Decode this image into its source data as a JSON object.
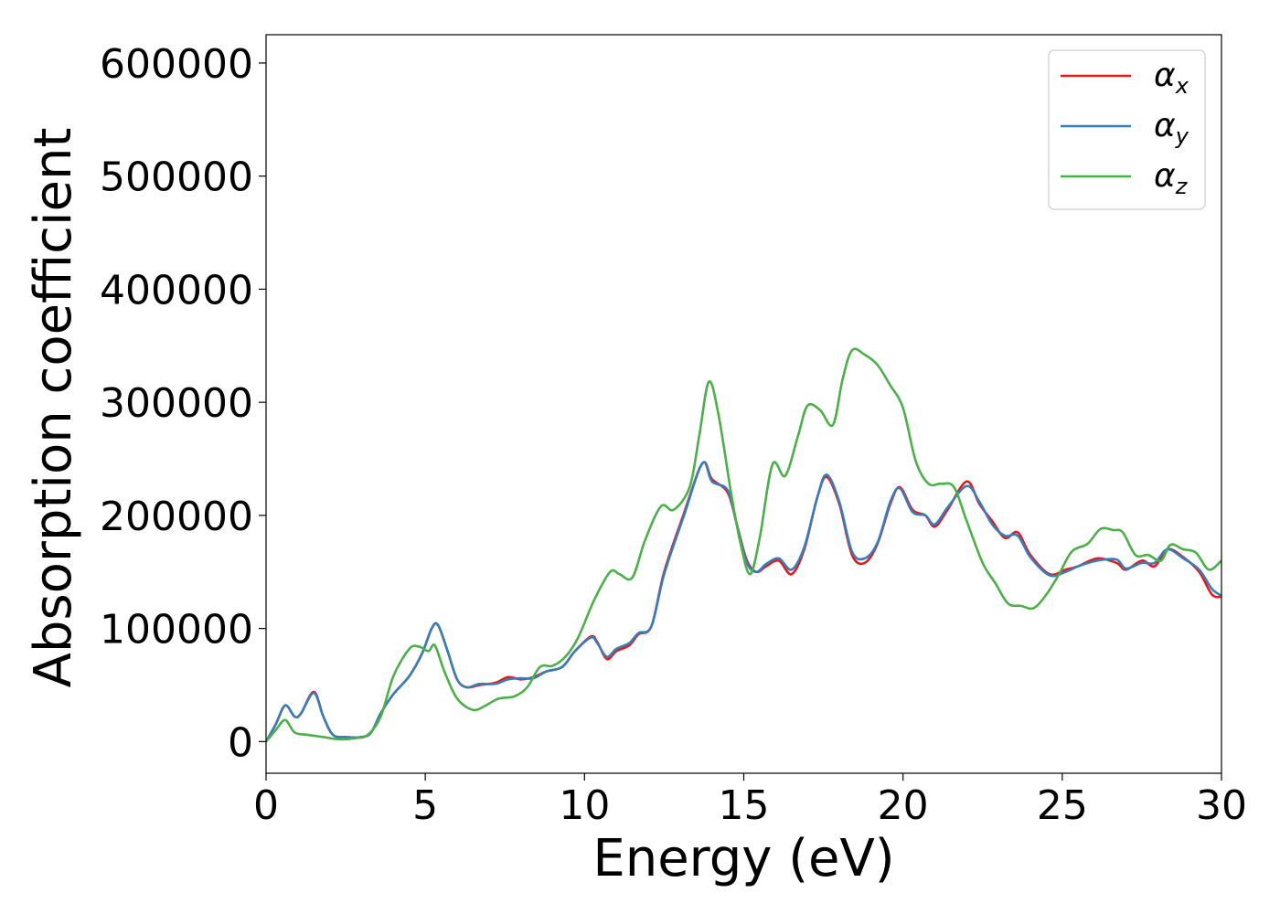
{
  "chart_data": {
    "type": "line",
    "title": "",
    "xlabel": "Energy (eV)",
    "ylabel": "Absorption coefficient",
    "xlim": [
      0,
      30
    ],
    "ylim": [
      -28000,
      625000
    ],
    "xticks": [
      0,
      5,
      10,
      15,
      20,
      25,
      30
    ],
    "xtick_labels": [
      "0",
      "5",
      "10",
      "15",
      "20",
      "25",
      "30"
    ],
    "yticks": [
      0,
      100000,
      200000,
      300000,
      400000,
      500000,
      600000
    ],
    "ytick_labels": [
      "0",
      "100000",
      "200000",
      "300000",
      "400000",
      "500000",
      "600000"
    ],
    "grid": false,
    "legend_position": "top-right",
    "series": [
      {
        "name": "α_x",
        "label_main": "α",
        "label_sub": "x",
        "color": "#e41a1c",
        "points": [
          [
            0,
            0
          ],
          [
            0.3,
            15000
          ],
          [
            0.6,
            32000
          ],
          [
            0.9,
            22000
          ],
          [
            1.1,
            25000
          ],
          [
            1.5,
            44000
          ],
          [
            1.8,
            22000
          ],
          [
            2.1,
            6000
          ],
          [
            2.5,
            4000
          ],
          [
            3.0,
            4000
          ],
          [
            3.3,
            8000
          ],
          [
            3.6,
            25000
          ],
          [
            4.0,
            42000
          ],
          [
            4.5,
            58000
          ],
          [
            4.9,
            78000
          ],
          [
            5.2,
            100000
          ],
          [
            5.4,
            103000
          ],
          [
            5.7,
            80000
          ],
          [
            6.0,
            55000
          ],
          [
            6.3,
            48000
          ],
          [
            6.7,
            50000
          ],
          [
            7.2,
            52000
          ],
          [
            7.6,
            57000
          ],
          [
            8.0,
            55000
          ],
          [
            8.4,
            57000
          ],
          [
            8.8,
            62000
          ],
          [
            9.3,
            66000
          ],
          [
            9.7,
            80000
          ],
          [
            10.2,
            93000
          ],
          [
            10.4,
            88000
          ],
          [
            10.7,
            73000
          ],
          [
            11.0,
            80000
          ],
          [
            11.4,
            85000
          ],
          [
            11.7,
            95000
          ],
          [
            12.1,
            102000
          ],
          [
            12.5,
            150000
          ],
          [
            13.1,
            200000
          ],
          [
            13.7,
            246000
          ],
          [
            14.0,
            232000
          ],
          [
            14.5,
            220000
          ],
          [
            14.8,
            190000
          ],
          [
            15.1,
            160000
          ],
          [
            15.4,
            150000
          ],
          [
            15.7,
            155000
          ],
          [
            16.1,
            160000
          ],
          [
            16.5,
            148000
          ],
          [
            16.9,
            170000
          ],
          [
            17.3,
            215000
          ],
          [
            17.6,
            234000
          ],
          [
            18.0,
            210000
          ],
          [
            18.4,
            165000
          ],
          [
            18.8,
            158000
          ],
          [
            19.2,
            175000
          ],
          [
            19.6,
            210000
          ],
          [
            19.9,
            225000
          ],
          [
            20.3,
            205000
          ],
          [
            20.7,
            200000
          ],
          [
            21.0,
            190000
          ],
          [
            21.4,
            205000
          ],
          [
            22.0,
            230000
          ],
          [
            22.4,
            210000
          ],
          [
            22.8,
            195000
          ],
          [
            23.2,
            180000
          ],
          [
            23.6,
            185000
          ],
          [
            24.0,
            165000
          ],
          [
            24.6,
            148000
          ],
          [
            25.1,
            152000
          ],
          [
            25.5,
            155000
          ],
          [
            26.1,
            162000
          ],
          [
            26.7,
            158000
          ],
          [
            27.0,
            152000
          ],
          [
            27.5,
            160000
          ],
          [
            27.9,
            155000
          ],
          [
            28.3,
            170000
          ],
          [
            28.8,
            163000
          ],
          [
            29.3,
            150000
          ],
          [
            29.7,
            130000
          ],
          [
            30.0,
            128000
          ]
        ]
      },
      {
        "name": "α_y",
        "label_main": "α",
        "label_sub": "y",
        "color": "#377eb8",
        "points": [
          [
            0,
            0
          ],
          [
            0.3,
            15000
          ],
          [
            0.6,
            32000
          ],
          [
            0.9,
            22000
          ],
          [
            1.1,
            25000
          ],
          [
            1.5,
            43000
          ],
          [
            1.8,
            22000
          ],
          [
            2.1,
            6000
          ],
          [
            2.5,
            4000
          ],
          [
            3.0,
            4000
          ],
          [
            3.3,
            8000
          ],
          [
            3.6,
            25000
          ],
          [
            4.0,
            42000
          ],
          [
            4.5,
            58000
          ],
          [
            4.9,
            78000
          ],
          [
            5.2,
            100000
          ],
          [
            5.4,
            103000
          ],
          [
            5.7,
            80000
          ],
          [
            6.0,
            55000
          ],
          [
            6.3,
            48000
          ],
          [
            6.7,
            51000
          ],
          [
            7.2,
            51000
          ],
          [
            7.6,
            55000
          ],
          [
            8.0,
            56000
          ],
          [
            8.4,
            56000
          ],
          [
            8.8,
            62000
          ],
          [
            9.3,
            66000
          ],
          [
            9.7,
            80000
          ],
          [
            10.2,
            92000
          ],
          [
            10.4,
            87000
          ],
          [
            10.7,
            75000
          ],
          [
            11.0,
            82000
          ],
          [
            11.4,
            87000
          ],
          [
            11.7,
            96000
          ],
          [
            12.1,
            102000
          ],
          [
            12.5,
            148000
          ],
          [
            13.1,
            198000
          ],
          [
            13.7,
            246000
          ],
          [
            14.0,
            230000
          ],
          [
            14.5,
            222000
          ],
          [
            14.8,
            190000
          ],
          [
            15.1,
            158000
          ],
          [
            15.4,
            150000
          ],
          [
            15.7,
            157000
          ],
          [
            16.1,
            162000
          ],
          [
            16.5,
            152000
          ],
          [
            16.9,
            172000
          ],
          [
            17.3,
            215000
          ],
          [
            17.6,
            236000
          ],
          [
            18.0,
            212000
          ],
          [
            18.4,
            168000
          ],
          [
            18.8,
            162000
          ],
          [
            19.2,
            176000
          ],
          [
            19.6,
            212000
          ],
          [
            19.9,
            224000
          ],
          [
            20.3,
            203000
          ],
          [
            20.7,
            200000
          ],
          [
            21.0,
            192000
          ],
          [
            21.4,
            207000
          ],
          [
            22.0,
            226000
          ],
          [
            22.4,
            212000
          ],
          [
            22.8,
            192000
          ],
          [
            23.2,
            182000
          ],
          [
            23.6,
            182000
          ],
          [
            24.0,
            163000
          ],
          [
            24.6,
            147000
          ],
          [
            25.1,
            150000
          ],
          [
            25.5,
            155000
          ],
          [
            26.1,
            160000
          ],
          [
            26.7,
            161000
          ],
          [
            27.0,
            153000
          ],
          [
            27.5,
            158000
          ],
          [
            27.9,
            158000
          ],
          [
            28.3,
            170000
          ],
          [
            28.8,
            162000
          ],
          [
            29.3,
            152000
          ],
          [
            29.7,
            135000
          ],
          [
            30.0,
            129000
          ]
        ]
      },
      {
        "name": "α_z",
        "label_main": "α",
        "label_sub": "z",
        "color": "#4daf4a",
        "points": [
          [
            0,
            0
          ],
          [
            0.3,
            10000
          ],
          [
            0.6,
            19000
          ],
          [
            0.9,
            8000
          ],
          [
            1.3,
            6000
          ],
          [
            1.8,
            4000
          ],
          [
            2.3,
            2000
          ],
          [
            2.8,
            3000
          ],
          [
            3.2,
            6000
          ],
          [
            3.6,
            22000
          ],
          [
            4.0,
            58000
          ],
          [
            4.5,
            82000
          ],
          [
            4.8,
            84000
          ],
          [
            5.1,
            80000
          ],
          [
            5.3,
            85000
          ],
          [
            5.6,
            62000
          ],
          [
            6.0,
            38000
          ],
          [
            6.5,
            28000
          ],
          [
            6.9,
            32000
          ],
          [
            7.3,
            38000
          ],
          [
            7.8,
            40000
          ],
          [
            8.2,
            48000
          ],
          [
            8.6,
            66000
          ],
          [
            9.0,
            67000
          ],
          [
            9.4,
            75000
          ],
          [
            9.8,
            92000
          ],
          [
            10.3,
            125000
          ],
          [
            10.8,
            150000
          ],
          [
            11.1,
            148000
          ],
          [
            11.5,
            145000
          ],
          [
            11.9,
            178000
          ],
          [
            12.4,
            208000
          ],
          [
            12.8,
            205000
          ],
          [
            13.3,
            225000
          ],
          [
            13.6,
            270000
          ],
          [
            13.9,
            318000
          ],
          [
            14.2,
            290000
          ],
          [
            14.6,
            220000
          ],
          [
            14.9,
            175000
          ],
          [
            15.2,
            148000
          ],
          [
            15.5,
            180000
          ],
          [
            15.9,
            245000
          ],
          [
            16.3,
            235000
          ],
          [
            16.7,
            270000
          ],
          [
            17.0,
            297000
          ],
          [
            17.4,
            293000
          ],
          [
            17.8,
            280000
          ],
          [
            18.1,
            320000
          ],
          [
            18.4,
            346000
          ],
          [
            18.8,
            342000
          ],
          [
            19.2,
            333000
          ],
          [
            19.6,
            315000
          ],
          [
            20.0,
            295000
          ],
          [
            20.4,
            248000
          ],
          [
            20.8,
            228000
          ],
          [
            21.2,
            228000
          ],
          [
            21.6,
            225000
          ],
          [
            22.0,
            195000
          ],
          [
            22.5,
            158000
          ],
          [
            22.9,
            140000
          ],
          [
            23.3,
            122000
          ],
          [
            23.7,
            120000
          ],
          [
            24.1,
            118000
          ],
          [
            24.5,
            130000
          ],
          [
            24.9,
            148000
          ],
          [
            25.3,
            168000
          ],
          [
            25.8,
            175000
          ],
          [
            26.2,
            188000
          ],
          [
            26.6,
            187000
          ],
          [
            26.9,
            185000
          ],
          [
            27.3,
            165000
          ],
          [
            27.7,
            165000
          ],
          [
            28.1,
            160000
          ],
          [
            28.4,
            174000
          ],
          [
            28.8,
            170000
          ],
          [
            29.2,
            167000
          ],
          [
            29.6,
            152000
          ],
          [
            30.0,
            160000
          ]
        ]
      }
    ]
  }
}
